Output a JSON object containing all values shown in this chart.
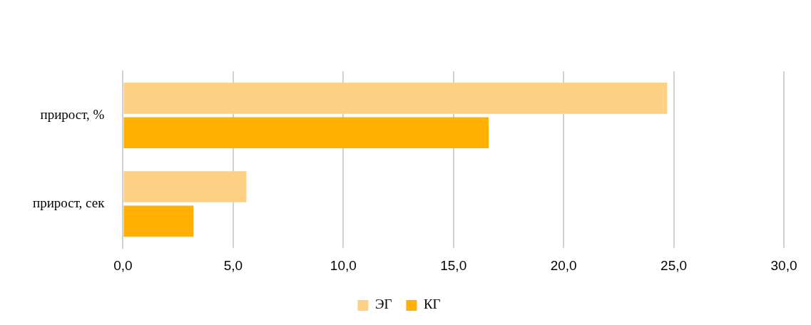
{
  "chart_data": {
    "type": "bar",
    "orientation": "horizontal",
    "categories": [
      "прирост, %",
      "прирост, сек"
    ],
    "series": [
      {
        "name": "ЭГ",
        "color": "#fdd184",
        "values": [
          24.7,
          5.6
        ]
      },
      {
        "name": "КГ",
        "color": "#ffb000",
        "values": [
          16.6,
          3.2
        ]
      }
    ],
    "xlim": [
      0,
      30
    ],
    "xticks": [
      {
        "value": 0,
        "label": "0,0"
      },
      {
        "value": 5,
        "label": "5,0"
      },
      {
        "value": 10,
        "label": "10,0"
      },
      {
        "value": 15,
        "label": "15,0"
      },
      {
        "value": 20,
        "label": "20,0"
      },
      {
        "value": 25,
        "label": "25,0"
      },
      {
        "value": 30,
        "label": "30,0"
      }
    ],
    "grid": "x",
    "legend": "bottom"
  }
}
